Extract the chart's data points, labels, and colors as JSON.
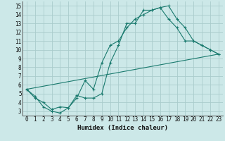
{
  "xlabel": "Humidex (Indice chaleur)",
  "bg_color": "#cce8e8",
  "grid_color": "#aacccc",
  "line_color": "#1a7a6e",
  "xlim": [
    -0.5,
    23.5
  ],
  "ylim": [
    2.5,
    15.5
  ],
  "xticks": [
    0,
    1,
    2,
    3,
    4,
    5,
    6,
    7,
    8,
    9,
    10,
    11,
    12,
    13,
    14,
    15,
    16,
    17,
    18,
    19,
    20,
    21,
    22,
    23
  ],
  "yticks": [
    3,
    4,
    5,
    6,
    7,
    8,
    9,
    10,
    11,
    12,
    13,
    14,
    15
  ],
  "line1_x": [
    0,
    1,
    2,
    3,
    4,
    5,
    6,
    7,
    8,
    9,
    10,
    11,
    12,
    13,
    14,
    15,
    16,
    17,
    18,
    19,
    20,
    21,
    22,
    23
  ],
  "line1_y": [
    5.5,
    4.7,
    3.5,
    3.0,
    2.8,
    3.4,
    4.8,
    4.5,
    4.5,
    5.0,
    8.5,
    10.5,
    13.0,
    13.0,
    14.5,
    14.5,
    14.8,
    15.0,
    13.5,
    12.5,
    11.0,
    10.5,
    10.0,
    9.5
  ],
  "line2_x": [
    0,
    1,
    2,
    3,
    4,
    5,
    6,
    7,
    8,
    9,
    10,
    11,
    12,
    13,
    14,
    15,
    16,
    17,
    18,
    19,
    20,
    21,
    22,
    23
  ],
  "line2_y": [
    5.5,
    4.5,
    4.0,
    3.2,
    3.5,
    3.4,
    4.5,
    6.5,
    5.5,
    8.5,
    10.5,
    11.0,
    12.5,
    13.5,
    14.0,
    14.5,
    14.8,
    13.5,
    12.5,
    11.0,
    11.0,
    10.5,
    10.0,
    9.5
  ],
  "line3_x": [
    0,
    23
  ],
  "line3_y": [
    5.5,
    9.5
  ],
  "xlabel_fontsize": 6.5,
  "tick_fontsize": 5.5
}
